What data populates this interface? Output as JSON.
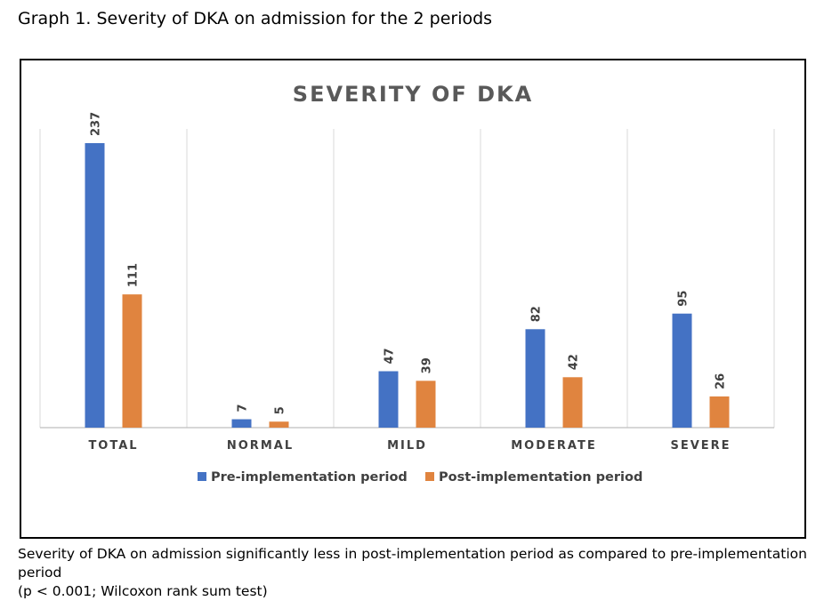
{
  "figure_caption": "Graph 1. Severity of DKA on admission for the 2 periods",
  "footnote": {
    "line1": "Severity of DKA on admission significantly less in post-implementation period as compared to pre-implementation period",
    "line2": "(p < 0.001; Wilcoxon rank sum test)"
  },
  "chart_data": {
    "type": "bar",
    "title": "SEVERITY OF DKA",
    "categories": [
      "TOTAL",
      "NORMAL",
      "MILD",
      "MODERATE",
      "SEVERE"
    ],
    "series": [
      {
        "name": "Pre-implementation period",
        "values": [
          237,
          7,
          47,
          82,
          95
        ],
        "color": "#4472C4"
      },
      {
        "name": "Post-implementation period",
        "values": [
          111,
          5,
          39,
          42,
          26
        ],
        "color": "#E0843F"
      }
    ],
    "ylim": [
      0,
      237
    ],
    "grid": "vertical category separators",
    "legend": "bottom",
    "data_labels": true
  }
}
